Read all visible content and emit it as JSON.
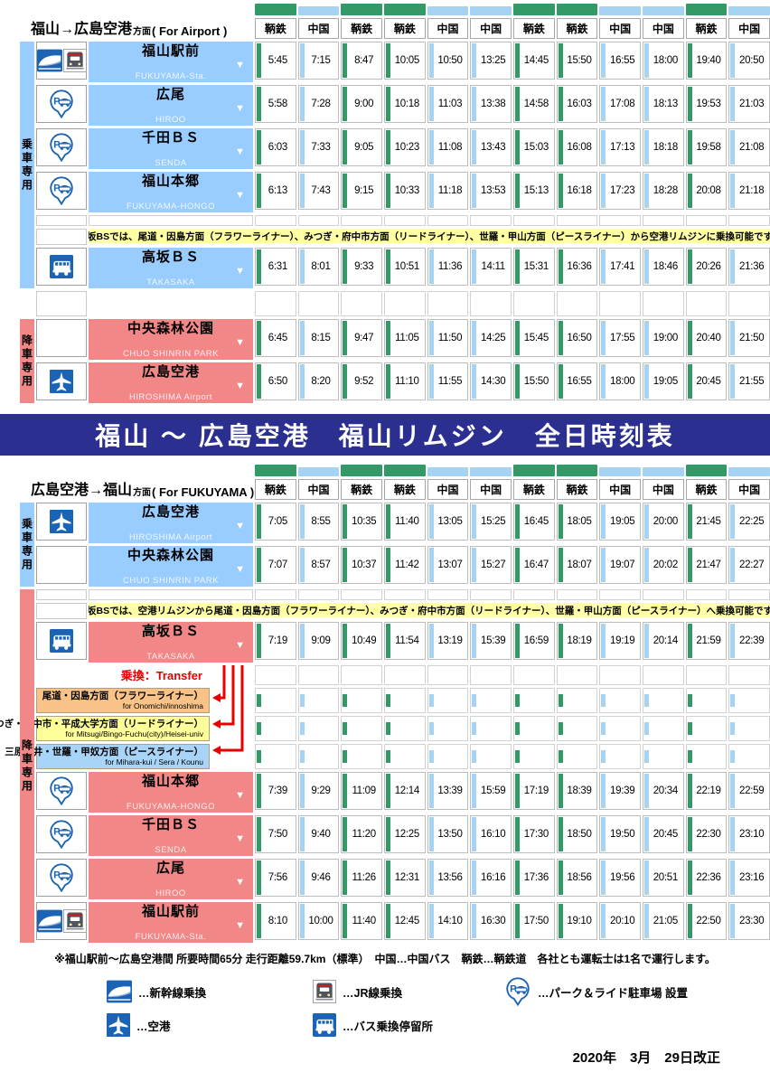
{
  "banner": {
    "title": "福山 ～ 広島空港　福山リムジン　全日時刻表"
  },
  "colors": {
    "operator_tomotetsu": "#339966",
    "operator_chugoku": "#A6D2F4",
    "boarding_bg": "#99CCFF",
    "alighting_bg": "#F18787",
    "note_bg": "#FFFFA6",
    "banner_bg": "#2B2F8F",
    "transfer_arrow": "#E60000"
  },
  "sections": [
    {
      "id": "to-airport",
      "direction": {
        "jp": "福山→広島空港",
        "suffix": "方面",
        "en": "( For Airport )"
      },
      "operators": [
        "鞆鉄",
        "中国",
        "鞆鉄",
        "鞆鉄",
        "中国",
        "中国",
        "鞆鉄",
        "鞆鉄",
        "中国",
        "中国",
        "鞆鉄",
        "中国"
      ],
      "boarding_label": "乗車専用",
      "alighting_label": "降車専用",
      "rows": [
        {
          "type": "station",
          "zone": "boarding",
          "name": "福山駅前",
          "romaji": "FUKUYAMA-Sta.",
          "icons": [
            "shinkansen",
            "jr-train"
          ],
          "times": [
            "5:45",
            "7:15",
            "8:47",
            "10:05",
            "10:50",
            "13:25",
            "14:45",
            "15:50",
            "16:55",
            "18:00",
            "19:40",
            "20:50"
          ]
        },
        {
          "type": "station",
          "zone": "boarding",
          "name": "広尾",
          "romaji": "HIROO",
          "icons": [
            "park-ride"
          ],
          "times": [
            "5:58",
            "7:28",
            "9:00",
            "10:18",
            "11:03",
            "13:38",
            "14:58",
            "16:03",
            "17:08",
            "18:13",
            "19:53",
            "21:03"
          ]
        },
        {
          "type": "station",
          "zone": "boarding",
          "name": "千田ＢＳ",
          "romaji": "SENDA",
          "icons": [
            "park-ride"
          ],
          "times": [
            "6:03",
            "7:33",
            "9:05",
            "10:23",
            "11:08",
            "13:43",
            "15:03",
            "16:08",
            "17:13",
            "18:18",
            "19:58",
            "21:08"
          ]
        },
        {
          "type": "station",
          "zone": "boarding",
          "name": "福山本郷",
          "romaji": "FUKUYAMA-HONGO",
          "icons": [
            "park-ride"
          ],
          "times": [
            "6:13",
            "7:43",
            "9:15",
            "10:33",
            "11:18",
            "13:53",
            "15:13",
            "16:18",
            "17:23",
            "18:28",
            "20:08",
            "21:18"
          ]
        },
        {
          "type": "spacer"
        },
        {
          "type": "note",
          "text": "高坂BSでは、尾道・因島方面（フラワーライナー）、みつぎ・府中市方面（リードライナー）、世羅・甲山方面（ピースライナー）から空港リムジンに乗換可能です。"
        },
        {
          "type": "station",
          "zone": "boarding",
          "name": "高坂ＢＳ",
          "romaji": "TAKASAKA",
          "icons": [
            "bus"
          ],
          "times": [
            "6:31",
            "8:01",
            "9:33",
            "10:51",
            "11:36",
            "14:11",
            "15:31",
            "16:36",
            "17:41",
            "18:46",
            "20:26",
            "21:36"
          ]
        },
        {
          "type": "gap"
        },
        {
          "type": "station",
          "zone": "alighting",
          "name": "中央森林公園",
          "romaji": "CHUO SHINRIN PARK",
          "icons": [],
          "times": [
            "6:45",
            "8:15",
            "9:47",
            "11:05",
            "11:50",
            "14:25",
            "15:45",
            "16:50",
            "17:55",
            "19:00",
            "20:40",
            "21:50"
          ]
        },
        {
          "type": "station",
          "zone": "alighting",
          "name": "広島空港",
          "romaji": "HIROSHIMA Airport",
          "icons": [
            "airplane"
          ],
          "times": [
            "6:50",
            "8:20",
            "9:52",
            "11:10",
            "11:55",
            "14:30",
            "15:50",
            "16:55",
            "18:00",
            "19:05",
            "20:45",
            "21:55"
          ]
        }
      ]
    },
    {
      "id": "to-fukuyama",
      "direction": {
        "jp": "広島空港→福山",
        "suffix": "方面",
        "en": "( For FUKUYAMA )"
      },
      "operators": [
        "鞆鉄",
        "中国",
        "鞆鉄",
        "鞆鉄",
        "中国",
        "中国",
        "鞆鉄",
        "鞆鉄",
        "中国",
        "中国",
        "鞆鉄",
        "中国"
      ],
      "boarding_label": "乗車専用",
      "alighting_label": "降車専用",
      "rows": [
        {
          "type": "station",
          "zone": "boarding",
          "name": "広島空港",
          "romaji": "HIROSHIMA Airport",
          "icons": [
            "airplane"
          ],
          "times": [
            "7:05",
            "8:55",
            "10:35",
            "11:40",
            "13:05",
            "15:25",
            "16:45",
            "18:05",
            "19:05",
            "20:00",
            "21:45",
            "22:25"
          ]
        },
        {
          "type": "station",
          "zone": "boarding",
          "name": "中央森林公園",
          "romaji": "CHUO SHINRIN PARK",
          "icons": [],
          "times": [
            "7:07",
            "8:57",
            "10:37",
            "11:42",
            "13:07",
            "15:27",
            "16:47",
            "18:07",
            "19:07",
            "20:02",
            "21:47",
            "22:27"
          ]
        },
        {
          "type": "spacer"
        },
        {
          "type": "note",
          "text": "高坂BSでは、空港リムジンから尾道・因島方面（フラワーライナー）、みつぎ・府中市方面（リードライナー）、世羅・甲山方面（ピースライナー）へ乗換可能です。"
        },
        {
          "type": "station",
          "zone": "alighting",
          "name": "高坂ＢＳ",
          "romaji": "TAKASAKA",
          "icons": [
            "bus"
          ],
          "times": [
            "7:19",
            "9:09",
            "10:49",
            "11:54",
            "13:19",
            "15:39",
            "16:59",
            "18:19",
            "19:19",
            "20:14",
            "21:59",
            "22:39"
          ]
        },
        {
          "type": "transfer_label",
          "text": "乗換：Transfer"
        },
        {
          "type": "transfer_route",
          "jp": "尾道・因島方面（フラワーライナー）",
          "en": "for Onomichi/innoshima",
          "bg": "#F9C387"
        },
        {
          "type": "transfer_route",
          "jp": "みつぎ・府中市・平成大学方面（リードライナー）",
          "en": "for Mitsugi/Bingo-Fuchu(city)/Heisei-univ",
          "bg": "#FFFF99"
        },
        {
          "type": "transfer_route",
          "jp": "三原久井・世羅・甲奴方面（ピースライナー）",
          "en": "for Mihara-kui / Sera / Kounu",
          "bg": "#A8D4F8"
        },
        {
          "type": "station",
          "zone": "alighting",
          "name": "福山本郷",
          "romaji": "FUKUYAMA-HONGO",
          "icons": [
            "park-ride"
          ],
          "times": [
            "7:39",
            "9:29",
            "11:09",
            "12:14",
            "13:39",
            "15:59",
            "17:19",
            "18:39",
            "19:39",
            "20:34",
            "22:19",
            "22:59"
          ]
        },
        {
          "type": "station",
          "zone": "alighting",
          "name": "千田ＢＳ",
          "romaji": "SENDA",
          "icons": [
            "park-ride"
          ],
          "times": [
            "7:50",
            "9:40",
            "11:20",
            "12:25",
            "13:50",
            "16:10",
            "17:30",
            "18:50",
            "19:50",
            "20:45",
            "22:30",
            "23:10"
          ]
        },
        {
          "type": "station",
          "zone": "alighting",
          "name": "広尾",
          "romaji": "HIROO",
          "icons": [
            "park-ride"
          ],
          "times": [
            "7:56",
            "9:46",
            "11:26",
            "12:31",
            "13:56",
            "16:16",
            "17:36",
            "18:56",
            "19:56",
            "20:51",
            "22:36",
            "23:16"
          ]
        },
        {
          "type": "station",
          "zone": "alighting",
          "name": "福山駅前",
          "romaji": "FUKUYAMA-Sta.",
          "icons": [
            "shinkansen",
            "jr-train"
          ],
          "times": [
            "8:10",
            "10:00",
            "11:40",
            "12:45",
            "14:10",
            "16:30",
            "17:50",
            "19:10",
            "20:10",
            "21:05",
            "22:50",
            "23:30"
          ]
        }
      ]
    }
  ],
  "footer": {
    "note": "※福山駅前～広島空港間 所要時間65分 走行距離59.7km（標準）　中国…中国バス　鞆鉄…鞆鉄道　各社とも運転士は1名で運行します。",
    "legend": [
      {
        "icon": "shinkansen",
        "label": "…新幹線乗換"
      },
      {
        "icon": "jr-train",
        "label": "…JR線乗換"
      },
      {
        "icon": "park-ride",
        "label": "…パーク＆ライド駐車場 設置"
      },
      {
        "icon": "airplane",
        "label": "…空港"
      },
      {
        "icon": "bus",
        "label": "…バス乗換停留所"
      }
    ],
    "revision_date": "2020年　3月　29日改正"
  }
}
